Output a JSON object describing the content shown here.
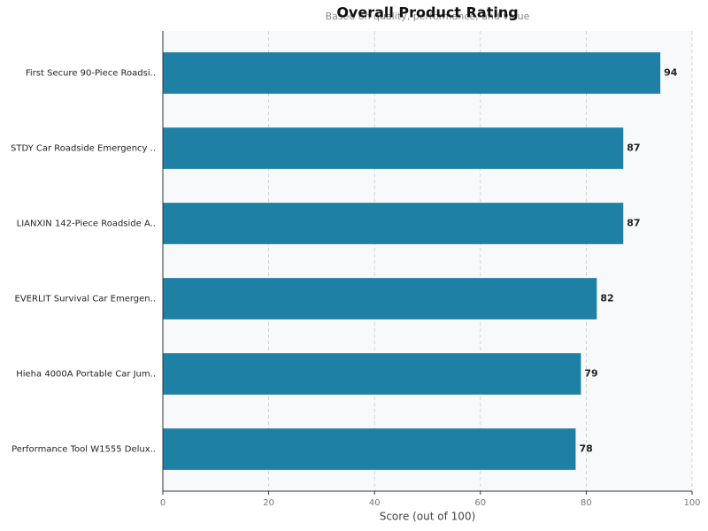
{
  "chart_data": {
    "type": "barh",
    "title": "Overall Product Rating",
    "subtitle": "Based on quality, performance, and value",
    "x_label": "Score (out of 100)",
    "categories": [
      "First Secure 90-Piece Roadsi..",
      "STDY Car Roadside Emergency ..",
      "LIANXIN 142-Piece Roadside A..",
      "EVERLIT Survival Car Emergen..",
      "Hieha 4000A Portable Car Jum..",
      "Performance Tool W1555 Delux.."
    ],
    "values": [
      94,
      87,
      87,
      82,
      79,
      78
    ],
    "color": "#1f80a6",
    "xlim": [
      0,
      100
    ],
    "xticks": [
      0,
      20,
      40,
      60,
      80,
      100
    ],
    "grid": true
  }
}
